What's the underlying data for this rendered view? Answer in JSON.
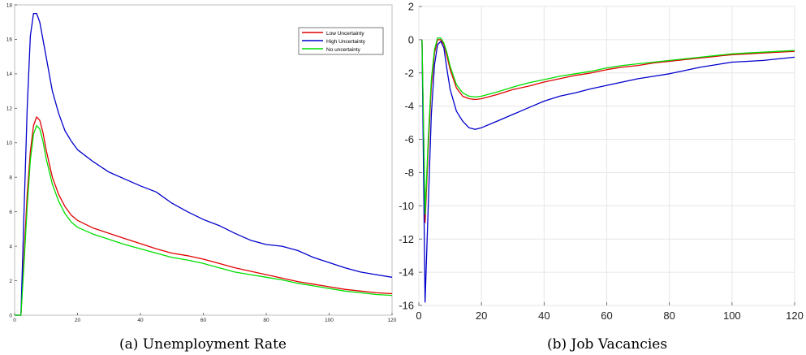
{
  "chart_data": [
    {
      "type": "line",
      "caption": "(a) Unemployment Rate",
      "xlim": [
        0,
        120
      ],
      "ylim": [
        0,
        18
      ],
      "xticks": [
        0,
        20,
        40,
        60,
        80,
        100,
        120
      ],
      "yticks": [
        0,
        2,
        4,
        6,
        8,
        10,
        12,
        14,
        16,
        18
      ],
      "grid": false,
      "legend": "top-right",
      "series": [
        {
          "name": "Low Uncertainty",
          "color": "#e00000",
          "x": [
            0,
            1,
            2,
            3,
            4,
            5,
            6,
            7,
            8,
            9,
            10,
            12,
            14,
            16,
            18,
            20,
            25,
            30,
            35,
            40,
            45,
            50,
            55,
            60,
            65,
            70,
            75,
            80,
            85,
            90,
            95,
            100,
            105,
            110,
            115,
            120
          ],
          "y": [
            0,
            0,
            0,
            3.5,
            7,
            9.5,
            11,
            11.5,
            11.3,
            10.6,
            9.6,
            8,
            7,
            6.3,
            5.8,
            5.5,
            5.05,
            4.75,
            4.45,
            4.15,
            3.85,
            3.6,
            3.45,
            3.25,
            3.0,
            2.75,
            2.55,
            2.35,
            2.15,
            1.95,
            1.8,
            1.65,
            1.5,
            1.4,
            1.3,
            1.25
          ]
        },
        {
          "name": "High Uncertainty",
          "color": "#0000cc",
          "x": [
            0,
            1,
            2,
            3,
            4,
            5,
            6,
            7,
            8,
            9,
            10,
            12,
            14,
            16,
            18,
            20,
            25,
            30,
            35,
            40,
            45,
            50,
            55,
            60,
            65,
            70,
            75,
            80,
            85,
            90,
            95,
            100,
            105,
            110,
            115,
            120
          ],
          "y": [
            0,
            0,
            0,
            6,
            12,
            16.2,
            17.5,
            17.5,
            17,
            16,
            15,
            13,
            11.7,
            10.7,
            10.1,
            9.6,
            8.9,
            8.3,
            7.9,
            7.5,
            7.15,
            6.5,
            6,
            5.55,
            5.2,
            4.75,
            4.35,
            4.1,
            4,
            3.75,
            3.35,
            3.05,
            2.75,
            2.5,
            2.35,
            2.2
          ]
        },
        {
          "name": "No uncertainty",
          "color": "#00dd00",
          "x": [
            0,
            1,
            2,
            3,
            4,
            5,
            6,
            7,
            8,
            9,
            10,
            12,
            14,
            16,
            18,
            20,
            25,
            30,
            35,
            40,
            45,
            50,
            55,
            60,
            65,
            70,
            75,
            80,
            85,
            90,
            95,
            100,
            105,
            110,
            115,
            120
          ],
          "y": [
            0,
            0,
            0,
            3,
            6.3,
            9,
            10.5,
            11,
            10.8,
            10.1,
            9.1,
            7.6,
            6.6,
            5.9,
            5.4,
            5.1,
            4.7,
            4.4,
            4.1,
            3.85,
            3.6,
            3.35,
            3.2,
            3.0,
            2.75,
            2.5,
            2.35,
            2.2,
            2.05,
            1.85,
            1.7,
            1.55,
            1.4,
            1.3,
            1.2,
            1.15
          ]
        }
      ]
    },
    {
      "type": "line",
      "caption": "(b) Job Vacancies",
      "xlim": [
        0,
        120
      ],
      "ylim": [
        -16,
        2
      ],
      "xticks": [
        0,
        20,
        40,
        60,
        80,
        100,
        120
      ],
      "yticks": [
        -16,
        -14,
        -12,
        -10,
        -8,
        -6,
        -4,
        -2,
        0,
        2
      ],
      "grid": true,
      "legend": "none",
      "series": [
        {
          "color": "#e00000",
          "x": [
            1,
            2,
            3,
            4,
            5,
            6,
            7,
            8,
            9,
            10,
            12,
            14,
            16,
            18,
            20,
            25,
            30,
            35,
            40,
            45,
            50,
            55,
            60,
            65,
            70,
            75,
            80,
            85,
            90,
            95,
            100,
            105,
            110,
            115,
            120
          ],
          "y": [
            0,
            -11,
            -6.5,
            -2.8,
            -0.8,
            0,
            0,
            -0.3,
            -1,
            -1.8,
            -2.9,
            -3.4,
            -3.55,
            -3.6,
            -3.55,
            -3.3,
            -3.0,
            -2.8,
            -2.55,
            -2.35,
            -2.15,
            -2.0,
            -1.8,
            -1.65,
            -1.55,
            -1.4,
            -1.3,
            -1.2,
            -1.1,
            -1.0,
            -0.9,
            -0.85,
            -0.8,
            -0.75,
            -0.7
          ]
        },
        {
          "color": "#0000cc",
          "x": [
            1,
            2,
            3,
            4,
            5,
            6,
            7,
            8,
            9,
            10,
            12,
            14,
            16,
            18,
            20,
            25,
            30,
            35,
            40,
            45,
            50,
            55,
            60,
            65,
            70,
            75,
            80,
            85,
            90,
            95,
            100,
            105,
            110,
            115,
            120
          ],
          "y": [
            0,
            -15.8,
            -10,
            -4.5,
            -1.5,
            -0.3,
            -0.1,
            -0.5,
            -1.8,
            -3,
            -4.3,
            -4.9,
            -5.3,
            -5.4,
            -5.3,
            -4.9,
            -4.5,
            -4.1,
            -3.7,
            -3.4,
            -3.2,
            -2.95,
            -2.75,
            -2.55,
            -2.35,
            -2.2,
            -2.05,
            -1.85,
            -1.65,
            -1.5,
            -1.35,
            -1.3,
            -1.25,
            -1.15,
            -1.05
          ]
        },
        {
          "color": "#00dd00",
          "x": [
            1,
            2,
            3,
            4,
            5,
            6,
            7,
            8,
            9,
            10,
            12,
            14,
            16,
            18,
            20,
            25,
            30,
            35,
            40,
            45,
            50,
            55,
            60,
            65,
            70,
            75,
            80,
            85,
            90,
            95,
            100,
            105,
            110,
            115,
            120
          ],
          "y": [
            0,
            -10.5,
            -6,
            -2.4,
            -0.6,
            0.1,
            0.1,
            -0.2,
            -0.8,
            -1.6,
            -2.7,
            -3.2,
            -3.4,
            -3.45,
            -3.4,
            -3.15,
            -2.85,
            -2.6,
            -2.4,
            -2.2,
            -2.05,
            -1.9,
            -1.7,
            -1.55,
            -1.45,
            -1.35,
            -1.25,
            -1.15,
            -1.05,
            -0.95,
            -0.85,
            -0.8,
            -0.75,
            -0.7,
            -0.65
          ]
        }
      ]
    }
  ]
}
